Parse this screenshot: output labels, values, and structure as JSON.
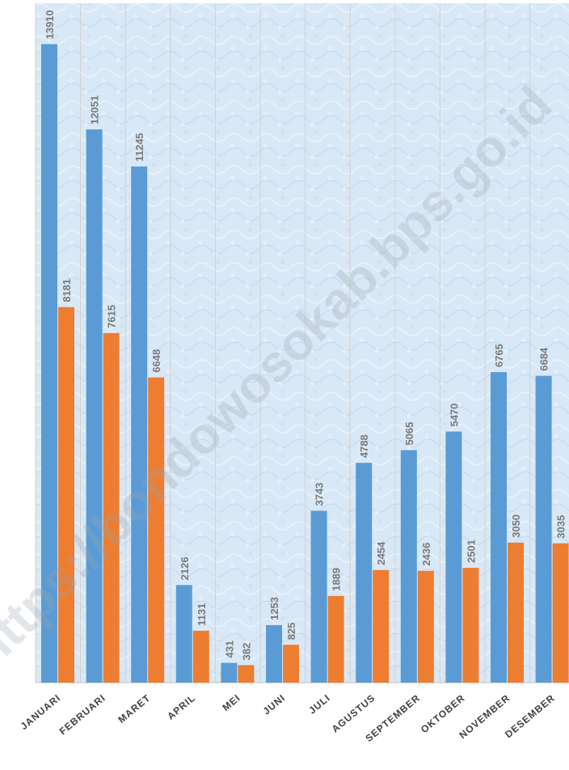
{
  "watermark": "https://bondowosokab.bps.go.id",
  "colors": {
    "series1": "#5b9bd5",
    "series2": "#ed7d31",
    "background": "#d9e8f5",
    "gridline": "#d2d2d2",
    "axis": "#c0c0c0"
  },
  "chart_data": {
    "type": "bar",
    "categories": [
      "JANUARI",
      "FEBRUARI",
      "MARET",
      "APRIL",
      "MEI",
      "JUNI",
      "JULI",
      "AGUSTUS",
      "SEPTEMBER",
      "OKTOBER",
      "NOVEMBER",
      "DESEMBER"
    ],
    "series": [
      {
        "values": [
          13910,
          12051,
          11245,
          2126,
          431,
          1253,
          3743,
          4788,
          5065,
          5470,
          6765,
          6684
        ]
      },
      {
        "values": [
          8181,
          7615,
          6648,
          1131,
          382,
          825,
          1889,
          2454,
          2436,
          2501,
          3050,
          3035
        ]
      }
    ],
    "title": "",
    "xlabel": "",
    "ylabel": "",
    "ylim": [
      0,
      14800
    ],
    "grid": "vertical category separators",
    "legend": "none",
    "data_labels": true
  }
}
